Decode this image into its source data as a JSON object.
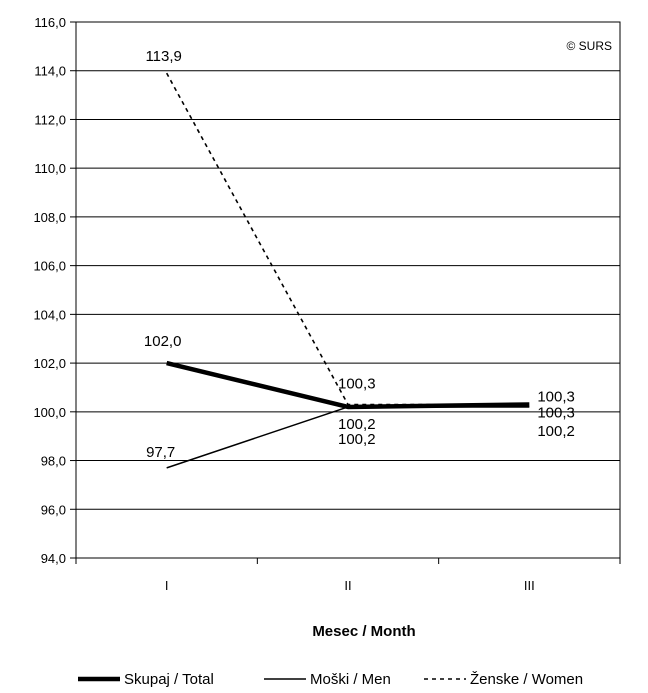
{
  "chart_data": {
    "type": "line",
    "categories": [
      "I",
      "II",
      "III"
    ],
    "xlabel": "Mesec / Month",
    "ylim": [
      94.0,
      116.0
    ],
    "y_ticks": [
      "94,0",
      "96,0",
      "98,0",
      "100,0",
      "102,0",
      "104,0",
      "106,0",
      "108,0",
      "110,0",
      "112,0",
      "114,0",
      "116,0"
    ],
    "grid": true,
    "legend_position": "bottom",
    "copyright": "© SURS",
    "series": [
      {
        "name": "Skupaj / Total",
        "values": [
          102.0,
          100.2,
          100.3
        ],
        "labels": [
          "102,0",
          "100,2",
          "100,3"
        ],
        "style": "thick"
      },
      {
        "name": "Moški / Men",
        "values": [
          97.7,
          100.2,
          100.2
        ],
        "labels": [
          "97,7",
          "100,2",
          "100,2"
        ],
        "style": "thin"
      },
      {
        "name": "Ženske / Women",
        "values": [
          113.9,
          100.3,
          100.3
        ],
        "labels": [
          "113,9",
          "100,3",
          "100,3"
        ],
        "style": "dashed"
      }
    ]
  }
}
